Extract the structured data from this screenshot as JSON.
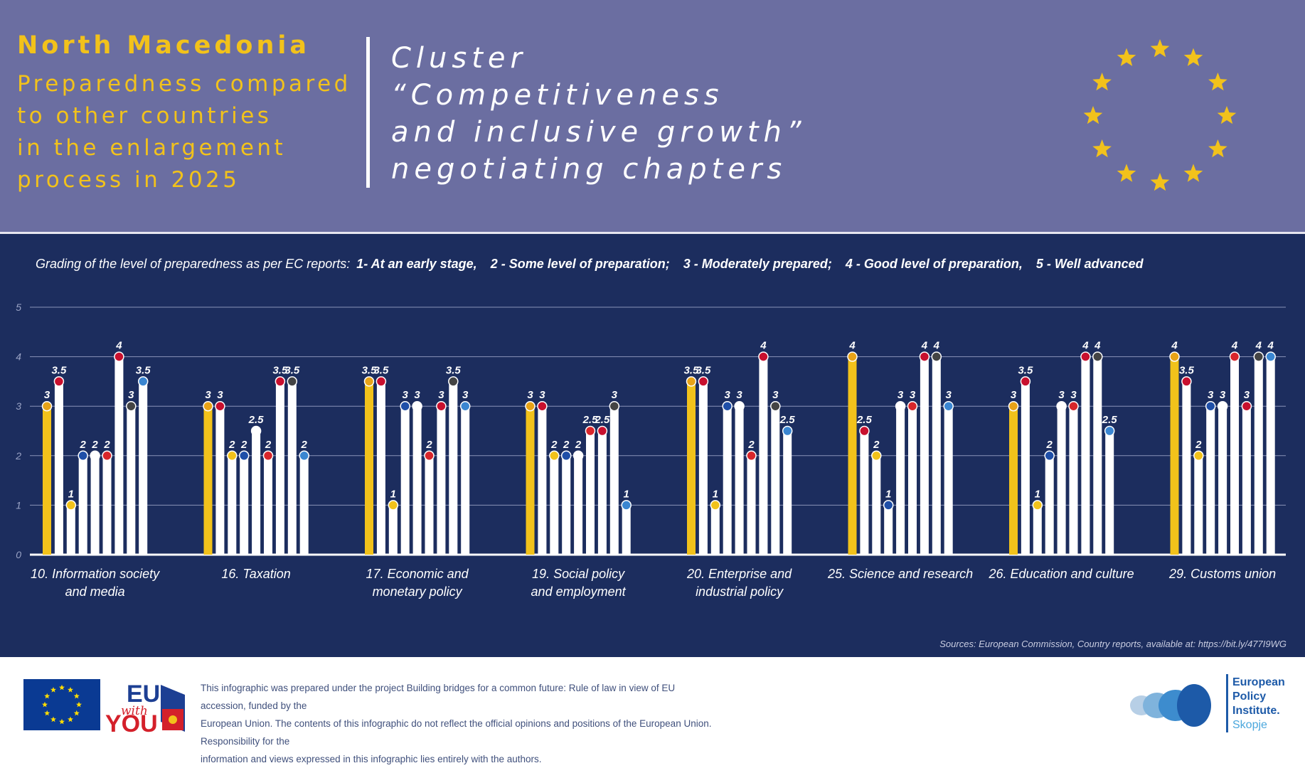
{
  "header": {
    "country": "North Macedonia",
    "subtitle_lines": [
      "Preparedness compared",
      "to other countries",
      "in the enlargement",
      "process in 2025"
    ],
    "cluster_lines": [
      "Cluster",
      "“Competitiveness",
      "and inclusive growth”",
      "negotiating chapters"
    ]
  },
  "legend": {
    "intro": "Grading of the level of preparedness as per EC reports:",
    "grades": [
      "1- At an early stage,",
      "2 - Some level of preparation;",
      "3 - Moderately prepared;",
      "4 - Good level of preparation,",
      "5 - Well advanced"
    ]
  },
  "colors": {
    "header_bg": "#6b6ea1",
    "chart_bg": "#1c2d5e",
    "accent_yellow": "#f2c21b",
    "bar_white": "#ffffff",
    "gridline": "#8a93b8"
  },
  "chart_data": {
    "type": "bar",
    "title": "",
    "xlabel": "",
    "ylabel": "",
    "ylim": [
      0,
      5
    ],
    "yticks": [
      0,
      1,
      2,
      3,
      4,
      5
    ],
    "highlight": "North Macedonia (first bar of each group, yellow)",
    "groups": [
      {
        "label": [
          "10. Information society",
          "and media"
        ],
        "values": [
          3,
          3.5,
          1,
          2,
          2,
          2,
          4,
          3,
          3.5
        ]
      },
      {
        "label": [
          "16. Taxation"
        ],
        "values": [
          3,
          3,
          2,
          2,
          2.5,
          2,
          3.5,
          3.5,
          2
        ]
      },
      {
        "label": [
          "17. Economic and",
          "monetary policy"
        ],
        "values": [
          3.5,
          3.5,
          1,
          3,
          3,
          2,
          3,
          3.5,
          3
        ]
      },
      {
        "label": [
          "19. Social policy",
          "and employment"
        ],
        "values": [
          3,
          3,
          2,
          2,
          2,
          2.5,
          2.5,
          3,
          1
        ]
      },
      {
        "label": [
          "20. Enterprise and",
          "industrial policy"
        ],
        "values": [
          3.5,
          3.5,
          1,
          3,
          3,
          2,
          4,
          3,
          2.5
        ]
      },
      {
        "label": [
          "25. Science and research"
        ],
        "values": [
          4,
          2.5,
          2,
          1,
          3,
          3,
          4,
          4,
          3
        ]
      },
      {
        "label": [
          "26. Education and culture"
        ],
        "values": [
          3,
          3.5,
          1,
          2,
          3,
          3,
          4,
          4,
          2.5
        ]
      },
      {
        "label": [
          "29. Customs union"
        ],
        "values": [
          4,
          3.5,
          2,
          3,
          3,
          4,
          3,
          4,
          4
        ]
      }
    ]
  },
  "sources": "Sources: European Commission, Country reports, available at: https://bit.ly/477I9WG",
  "footer": {
    "logo_eu_with_you": [
      "EU",
      "with",
      "YOU"
    ],
    "disclaimer_lines": [
      "This infographic was prepared under the project Building bridges for a common future: Rule of law in view of EU accession, funded by the",
      "European Union. The contents of this infographic do not reflect the official opinions and positions of the European Union. Responsibility for the",
      "information and views expressed in this infographic lies entirely with the authors."
    ],
    "epi_lines": [
      "European",
      "Policy",
      "Institute.",
      "Skopje"
    ]
  }
}
